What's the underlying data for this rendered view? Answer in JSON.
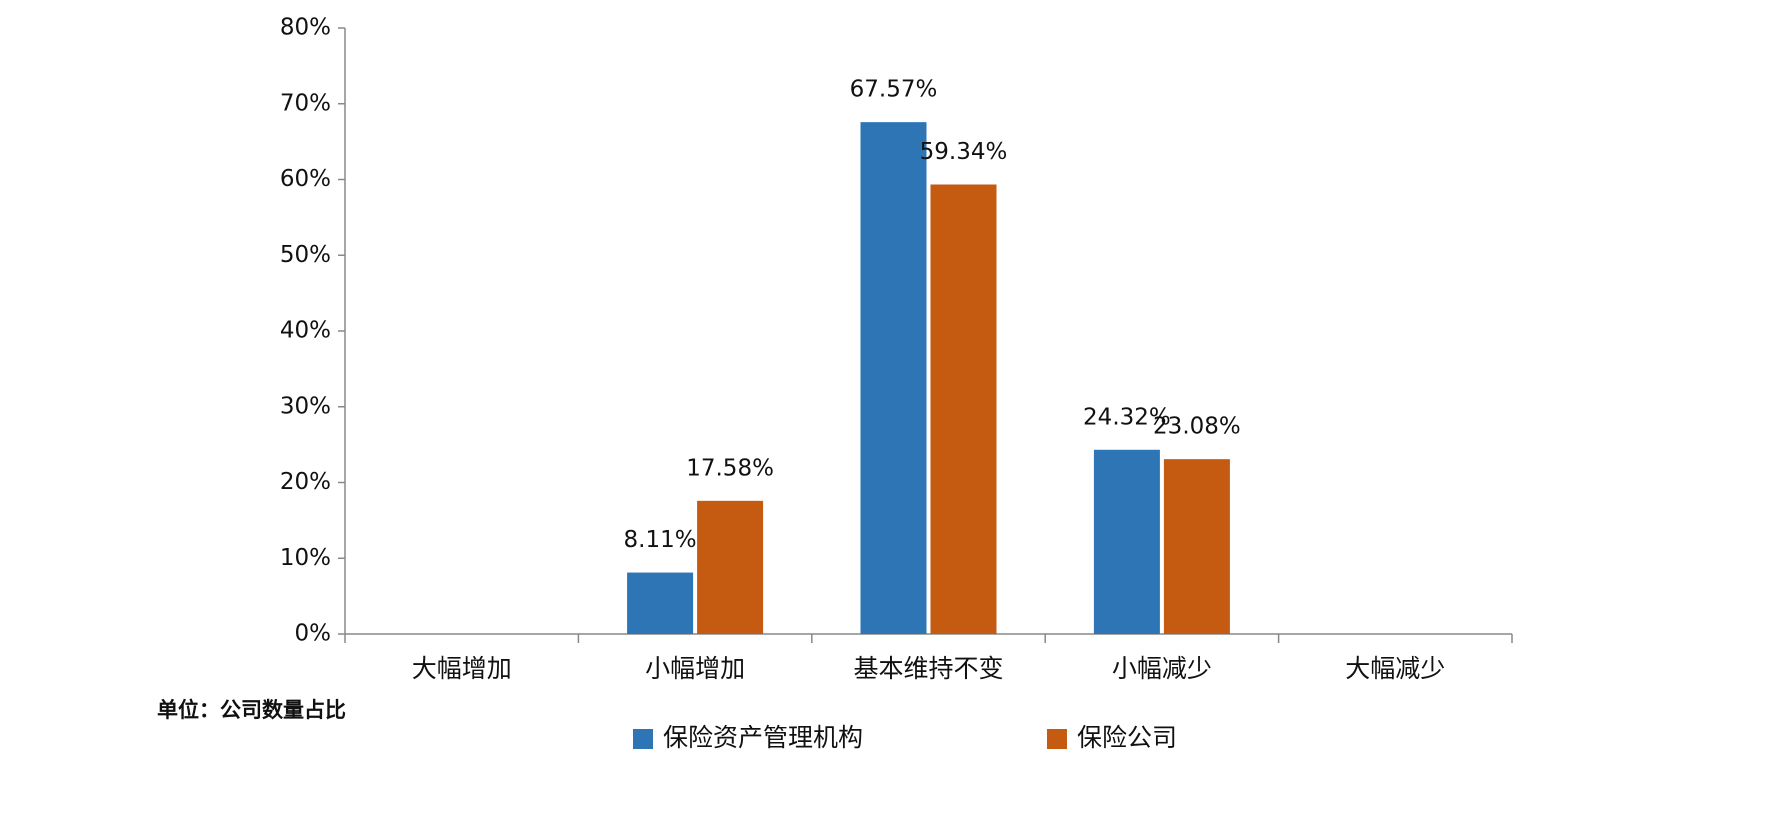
{
  "chart_data": {
    "type": "bar",
    "categories": [
      "大幅增加",
      "小幅增加",
      "基本维持不变",
      "小幅减少",
      "大幅减少"
    ],
    "series": [
      {
        "name": "保险资产管理机构",
        "color": "#2e75b6",
        "values": [
          null,
          8.11,
          67.57,
          24.32,
          null
        ],
        "value_labels": [
          null,
          "8.11%",
          "67.57%",
          "24.32%",
          null
        ]
      },
      {
        "name": "保险公司",
        "color": "#c55a11",
        "values": [
          null,
          17.58,
          59.34,
          23.08,
          null
        ],
        "value_labels": [
          null,
          "17.58%",
          "59.34%",
          "23.08%",
          null
        ]
      }
    ],
    "ylim": [
      0,
      80
    ],
    "yticks": [
      {
        "value": 0,
        "label": "0%"
      },
      {
        "value": 10,
        "label": "10%"
      },
      {
        "value": 20,
        "label": "20%"
      },
      {
        "value": 30,
        "label": "30%"
      },
      {
        "value": 40,
        "label": "40%"
      },
      {
        "value": 50,
        "label": "50%"
      },
      {
        "value": 60,
        "label": "60%"
      },
      {
        "value": 70,
        "label": "70%"
      },
      {
        "value": 80,
        "label": "80%"
      }
    ],
    "annotation": "单位：公司数量占比",
    "legend": "bottom"
  }
}
